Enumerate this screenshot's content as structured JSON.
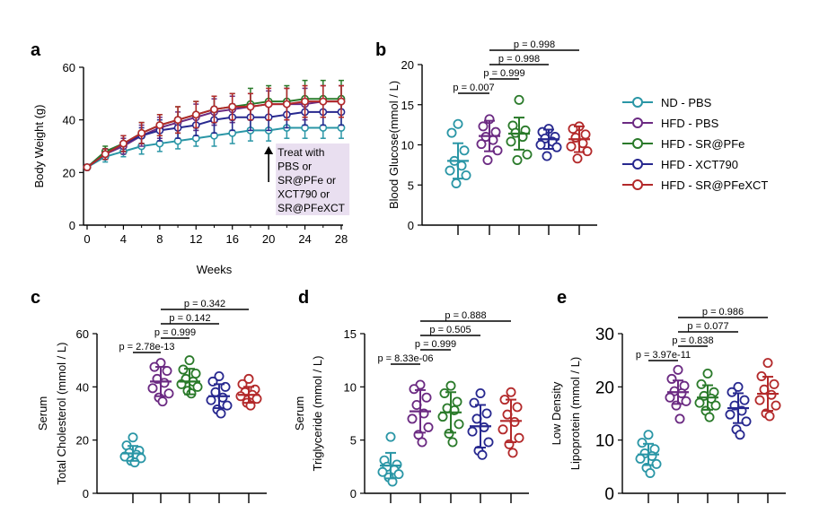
{
  "colors": {
    "ND - PBS": "#2a96a6",
    "HFD - PBS": "#6b2a82",
    "HFD - SR@PFe": "#2a7a2a",
    "HFD - XCT790": "#27288f",
    "HFD - SR@PFeXCT": "#b3292a"
  },
  "legend": [
    "ND - PBS",
    "HFD - PBS",
    "HFD - SR@PFe",
    "HFD - XCT790",
    "HFD - SR@PFeXCT"
  ],
  "chart_data": [
    {
      "id": "a",
      "panel_label": "a",
      "type": "line",
      "xlabel": "Weeks",
      "ylabel": "Body Weight (g)",
      "xlim": [
        0,
        28
      ],
      "ylim": [
        0,
        60
      ],
      "xticks": [
        0,
        4,
        8,
        12,
        16,
        20,
        24,
        28
      ],
      "yticks": [
        0,
        20,
        40,
        60
      ],
      "x": [
        0,
        2,
        4,
        6,
        8,
        10,
        12,
        14,
        16,
        18,
        20,
        22,
        24,
        26,
        28
      ],
      "annotation": [
        "Treat with",
        "PBS or",
        "SR@PFe or",
        "XCT790 or",
        "SR@PFeXCT"
      ],
      "annotation_x": 20,
      "series": [
        {
          "name": "ND - PBS",
          "values": [
            22,
            26,
            28,
            30,
            31,
            32,
            33,
            34,
            35,
            36,
            36,
            37,
            37,
            37,
            37
          ],
          "err": [
            1,
            2,
            2,
            3,
            3,
            3,
            3,
            4,
            4,
            4,
            4,
            4,
            4,
            4,
            4
          ]
        },
        {
          "name": "HFD - PBS",
          "values": [
            22,
            27,
            30,
            34,
            37,
            39,
            41,
            43,
            44,
            45,
            46,
            46,
            46,
            47,
            47
          ],
          "err": [
            1,
            2,
            3,
            4,
            4,
            4,
            5,
            5,
            5,
            5,
            5,
            6,
            6,
            6,
            6
          ]
        },
        {
          "name": "HFD - SR@PFe",
          "values": [
            22,
            28,
            31,
            35,
            38,
            40,
            42,
            44,
            45,
            46,
            47,
            47,
            48,
            48,
            48
          ],
          "err": [
            1,
            2,
            3,
            4,
            4,
            5,
            5,
            5,
            5,
            6,
            6,
            6,
            7,
            7,
            7
          ]
        },
        {
          "name": "HFD - XCT790",
          "values": [
            22,
            27,
            31,
            34,
            36,
            37,
            38,
            40,
            41,
            41,
            41,
            42,
            43,
            43,
            43
          ],
          "err": [
            1,
            2,
            3,
            3,
            4,
            4,
            4,
            5,
            5,
            5,
            5,
            5,
            5,
            5,
            5
          ]
        },
        {
          "name": "HFD - SR@PFeXCT",
          "values": [
            22,
            27,
            31,
            35,
            38,
            40,
            42,
            44,
            45,
            45,
            46,
            46,
            47,
            47,
            47
          ],
          "err": [
            1,
            2,
            3,
            4,
            4,
            5,
            5,
            5,
            5,
            5,
            6,
            6,
            6,
            6,
            6
          ]
        }
      ]
    },
    {
      "id": "b",
      "panel_label": "b",
      "type": "scatter",
      "ylabel": "Blood Glucose(mmol / L)",
      "ylim": [
        0,
        20
      ],
      "yticks": [
        0,
        5,
        10,
        15,
        20
      ],
      "groups": [
        {
          "name": "ND - PBS",
          "mean": 8.0,
          "sd": 2.2,
          "points": [
            12.6,
            11.5,
            9.3,
            8.0,
            7.4,
            6.8,
            6.2,
            5.2
          ]
        },
        {
          "name": "HFD - PBS",
          "mean": 11.1,
          "sd": 1.9,
          "points": [
            13.2,
            12.3,
            11.6,
            11.0,
            10.6,
            10.1,
            9.3,
            8.1
          ]
        },
        {
          "name": "HFD - SR@PFe",
          "mean": 11.4,
          "sd": 2.0,
          "points": [
            15.6,
            12.4,
            11.8,
            11.5,
            11.0,
            10.4,
            8.8,
            8.1
          ]
        },
        {
          "name": "HFD - XCT790",
          "mean": 10.7,
          "sd": 1.2,
          "points": [
            12.0,
            11.6,
            11.0,
            10.8,
            10.4,
            10.0,
            9.7,
            8.6
          ]
        },
        {
          "name": "HFD - SR@PFeXCT",
          "mean": 10.7,
          "sd": 1.6,
          "points": [
            12.3,
            12.0,
            11.3,
            10.9,
            10.2,
            9.8,
            9.2,
            8.3
          ]
        }
      ],
      "comparisons": [
        {
          "from": 0,
          "to": 1,
          "label": "p = 0.007"
        },
        {
          "from": 1,
          "to": 2,
          "label": "p = 0.999"
        },
        {
          "from": 1,
          "to": 3,
          "label": "p = 0.998"
        },
        {
          "from": 1,
          "to": 4,
          "label": "p = 0.998"
        }
      ]
    },
    {
      "id": "c",
      "panel_label": "c",
      "type": "scatter",
      "ylabel": "Total Cholesterol (mmol / L)",
      "ylabel_top": "Serum",
      "ylim": [
        0,
        60
      ],
      "yticks": [
        0,
        20,
        40,
        60
      ],
      "big_ticks": false,
      "groups": [
        {
          "name": "ND - PBS",
          "mean": 15.0,
          "sd": 2.8,
          "points": [
            21.0,
            18.0,
            16.0,
            15.2,
            14.5,
            13.8,
            13.2,
            12.2,
            11.6
          ]
        },
        {
          "name": "HFD - PBS",
          "mean": 42.0,
          "sd": 5.5,
          "points": [
            49.0,
            47.5,
            46.0,
            43.0,
            41.5,
            39.5,
            37.5,
            36.0,
            34.5
          ]
        },
        {
          "name": "HFD - SR@PFe",
          "mean": 42.0,
          "sd": 4.8,
          "points": [
            50.0,
            46.5,
            45.0,
            43.0,
            42.0,
            41.0,
            40.0,
            38.5,
            37.5
          ]
        },
        {
          "name": "HFD - XCT790",
          "mean": 36.5,
          "sd": 4.5,
          "points": [
            44.0,
            42.0,
            40.0,
            38.0,
            36.0,
            35.0,
            33.0,
            31.5,
            30.0
          ]
        },
        {
          "name": "HFD - SR@PFeXCT",
          "mean": 37.0,
          "sd": 3.0,
          "points": [
            43.0,
            41.0,
            39.0,
            38.0,
            37.0,
            36.5,
            35.5,
            34.0,
            33.0
          ]
        }
      ],
      "comparisons": [
        {
          "from": 0,
          "to": 1,
          "label": "p = 2.78e-13"
        },
        {
          "from": 1,
          "to": 2,
          "label": "p = 0.999"
        },
        {
          "from": 1,
          "to": 3,
          "label": "p = 0.142"
        },
        {
          "from": 1,
          "to": 4,
          "label": "p = 0.342"
        }
      ]
    },
    {
      "id": "d",
      "panel_label": "d",
      "type": "scatter",
      "ylabel": "Triglyceride (mmol / L)",
      "ylabel_top": "Serum",
      "ylim": [
        0,
        15
      ],
      "yticks": [
        0,
        5,
        10,
        15
      ],
      "big_ticks": false,
      "groups": [
        {
          "name": "ND - PBS",
          "mean": 2.6,
          "sd": 1.2,
          "points": [
            5.3,
            3.1,
            2.7,
            2.5,
            2.2,
            2.0,
            1.8,
            1.5,
            1.1
          ]
        },
        {
          "name": "HFD - PBS",
          "mean": 7.7,
          "sd": 2.0,
          "points": [
            10.2,
            9.8,
            9.0,
            8.3,
            7.5,
            7.0,
            6.2,
            5.5,
            4.8
          ]
        },
        {
          "name": "HFD - SR@PFe",
          "mean": 7.6,
          "sd": 1.9,
          "points": [
            10.1,
            9.4,
            8.6,
            8.0,
            7.8,
            7.2,
            6.5,
            5.6,
            4.8
          ]
        },
        {
          "name": "HFD - XCT790",
          "mean": 6.3,
          "sd": 2.0,
          "points": [
            9.4,
            8.5,
            7.5,
            7.0,
            6.2,
            5.8,
            4.8,
            4.0,
            3.6
          ]
        },
        {
          "name": "HFD - SR@PFeXCT",
          "mean": 6.8,
          "sd": 2.0,
          "points": [
            9.5,
            8.8,
            8.1,
            7.4,
            6.7,
            6.0,
            5.2,
            4.6,
            3.8
          ]
        }
      ],
      "comparisons": [
        {
          "from": 0,
          "to": 1,
          "label": "p = 8.33e-06"
        },
        {
          "from": 1,
          "to": 2,
          "label": "p = 0.999"
        },
        {
          "from": 1,
          "to": 3,
          "label": "p = 0.505"
        },
        {
          "from": 1,
          "to": 4,
          "label": "p = 0.888"
        }
      ]
    },
    {
      "id": "e",
      "panel_label": "e",
      "type": "scatter",
      "ylabel": "Lipoprotein (mmol / L)",
      "ylabel_top": "Low Density",
      "ylim": [
        0,
        30
      ],
      "yticks": [
        0,
        10,
        20,
        30
      ],
      "big_ticks": true,
      "groups": [
        {
          "name": "ND - PBS",
          "mean": 7.3,
          "sd": 2.0,
          "points": [
            11.0,
            9.5,
            8.3,
            7.5,
            7.0,
            6.5,
            5.5,
            4.8,
            3.8
          ]
        },
        {
          "name": "HFD - PBS",
          "mean": 19.0,
          "sd": 2.2,
          "points": [
            23.2,
            21.5,
            20.2,
            19.2,
            18.8,
            18.0,
            17.3,
            16.5,
            14.0
          ]
        },
        {
          "name": "HFD - SR@PFe",
          "mean": 18.0,
          "sd": 2.3,
          "points": [
            22.5,
            20.5,
            19.0,
            18.3,
            17.8,
            17.0,
            16.5,
            15.5,
            14.3
          ]
        },
        {
          "name": "HFD - XCT790",
          "mean": 16.0,
          "sd": 2.8,
          "points": [
            20.0,
            19.0,
            17.5,
            16.5,
            15.5,
            14.8,
            13.5,
            12.0,
            11.0
          ]
        },
        {
          "name": "HFD - SR@PFeXCT",
          "mean": 18.7,
          "sd": 3.2,
          "points": [
            24.5,
            22.0,
            20.5,
            19.5,
            18.5,
            17.5,
            16.5,
            15.0,
            14.5
          ]
        }
      ],
      "comparisons": [
        {
          "from": 0,
          "to": 1,
          "label": "p = 3.97e-11"
        },
        {
          "from": 1,
          "to": 2,
          "label": "p = 0.838"
        },
        {
          "from": 1,
          "to": 3,
          "label": "p = 0.077"
        },
        {
          "from": 1,
          "to": 4,
          "label": "p = 0.986"
        }
      ]
    }
  ]
}
